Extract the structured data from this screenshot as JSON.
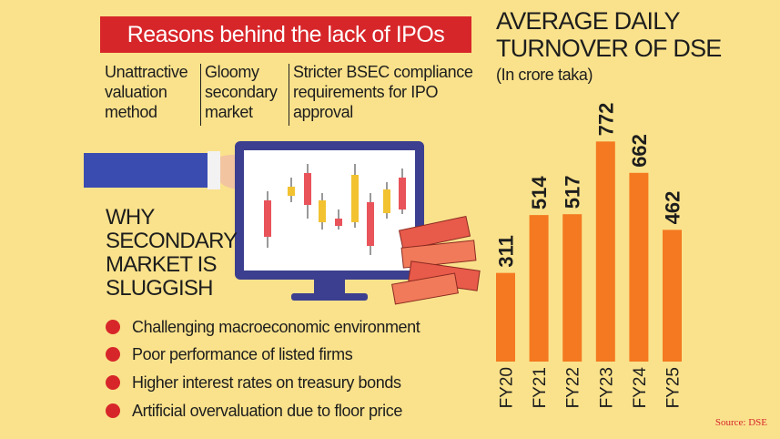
{
  "reasons": {
    "title": "Reasons behind the lack of IPOs",
    "items": [
      "Unattractive valuation method",
      "Gloomy secondary market",
      "Stricter BSEC compliance requirements for IPO approval"
    ]
  },
  "sluggish": {
    "title": "WHY SECONDARY MARKET IS SLUGGISH",
    "items": [
      "Challenging macroeconomic environment",
      "Poor performance of listed firms",
      "Higher interest rates on treasury bonds",
      "Artificial overvaluation due to floor price"
    ]
  },
  "chart_data": {
    "type": "bar",
    "title": "AVERAGE DAILY TURNOVER OF DSE",
    "subtitle": "(In crore taka)",
    "categories": [
      "FY20",
      "FY21",
      "FY22",
      "FY23",
      "FY24",
      "FY25"
    ],
    "values": [
      311,
      514,
      517,
      772,
      662,
      462
    ],
    "color": "#f47920",
    "source": "Source: DSE"
  }
}
